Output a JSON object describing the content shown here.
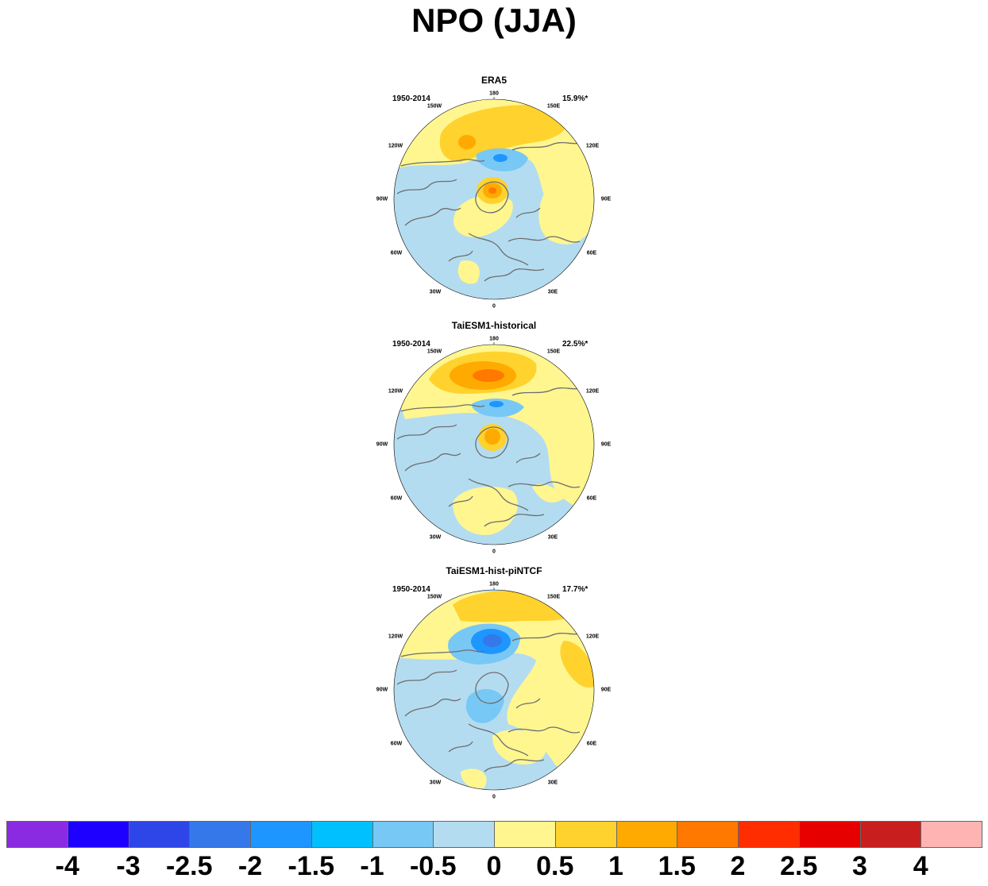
{
  "title": "NPO (JJA)",
  "panels": [
    {
      "title": "ERA5",
      "period": "1950-2014",
      "percent": "15.9%*"
    },
    {
      "title": "TaiESM1-historical",
      "period": "1950-2014",
      "percent": "22.5%*"
    },
    {
      "title": "TaiESM1-hist-piNTCF",
      "period": "1950-2014",
      "percent": "17.7%*"
    }
  ],
  "longitude_labels": [
    "180",
    "150E",
    "120E",
    "90E",
    "60E",
    "30E",
    "0",
    "30W",
    "60W",
    "90W",
    "120W",
    "150W"
  ],
  "colorbar": {
    "colors": [
      "#8a2be2",
      "#1e00ff",
      "#2e46e8",
      "#3478ea",
      "#1e96ff",
      "#00c0ff",
      "#78c8f5",
      "#b4dcf0",
      "#fff690",
      "#ffd22d",
      "#ffaa00",
      "#ff7800",
      "#ff2d00",
      "#e60000",
      "#c81e1e",
      "#ffb4b4"
    ],
    "labels": [
      "-4",
      "-3",
      "-2.5",
      "-2",
      "-1.5",
      "-1",
      "-0.5",
      "0",
      "0.5",
      "1",
      "1.5",
      "2",
      "2.5",
      "3",
      "4"
    ]
  },
  "map_colors": {
    "land_outline": "#6e6e6e",
    "neg_light": "#b4dcf0",
    "neg_mid": "#78c8f5",
    "neg_strong": "#1e96ff",
    "neg_max": "#3478ea",
    "pos_light": "#fff690",
    "pos_mid": "#ffd22d",
    "pos_strong": "#ffaa00",
    "pos_max": "#ff7800"
  }
}
